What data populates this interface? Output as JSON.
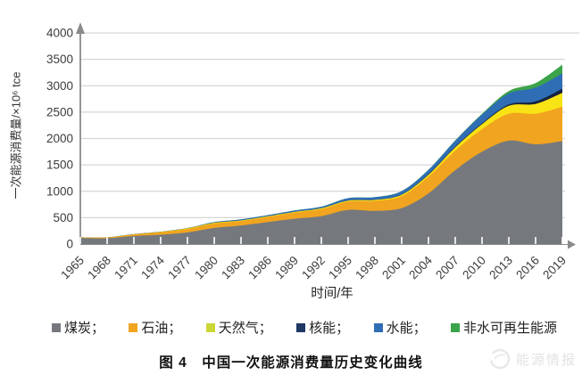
{
  "figure": {
    "caption": "图 4　中国一次能源消费量历史变化曲线",
    "watermark": "能源情报"
  },
  "chart_data": {
    "type": "area",
    "stacked": true,
    "xlabel": "时间/年",
    "ylabel": "一次能源消费量/×10⁶ tce",
    "grid": true,
    "legend_position": "bottom",
    "ylim": [
      0,
      4000
    ],
    "yticks": [
      0,
      500,
      1000,
      1500,
      2000,
      2500,
      3000,
      3500,
      4000
    ],
    "x": [
      1965,
      1968,
      1971,
      1974,
      1977,
      1980,
      1983,
      1986,
      1989,
      1992,
      1995,
      1998,
      2001,
      2004,
      2007,
      2010,
      2013,
      2016,
      2019
    ],
    "series": [
      {
        "id": "coal",
        "name": "煤炭",
        "label": "煤炭；",
        "color": "#75797E",
        "values": [
          114,
          110,
          154,
          177,
          221,
          305,
          352,
          415,
          480,
          529,
          647,
          629,
          682,
          960,
          1400,
          1749,
          1960,
          1890,
          1951
        ]
      },
      {
        "id": "oil",
        "name": "石油",
        "label": "石油；",
        "color": "#F1A41F",
        "values": [
          11,
          15,
          28,
          48,
          66,
          85,
          85,
          100,
          116,
          135,
          160,
          190,
          228,
          318,
          370,
          428,
          510,
          580,
          650
        ]
      },
      {
        "id": "gas",
        "name": "天然气",
        "label": "天然气；",
        "color": "#F8E315",
        "legend_color": "#CBD637",
        "values": [
          1,
          1,
          3,
          6,
          11,
          13,
          11,
          12,
          13,
          14,
          16,
          18,
          25,
          36,
          63,
          95,
          150,
          185,
          265
        ]
      },
      {
        "id": "nuclear",
        "name": "核能",
        "label": "核能；",
        "color": "#16233E",
        "legend_color": "#1F3864",
        "values": [
          0,
          0,
          0,
          0,
          0,
          0,
          0,
          0,
          0,
          0,
          3,
          3,
          4,
          11,
          14,
          17,
          25,
          48,
          78
        ]
      },
      {
        "id": "hydro",
        "name": "水能",
        "label": "水能；",
        "color": "#2F6EB5",
        "values": [
          2,
          3,
          3,
          4,
          5,
          13,
          20,
          21,
          27,
          30,
          43,
          47,
          63,
          80,
          110,
          165,
          210,
          263,
          290
        ]
      },
      {
        "id": "renewables",
        "name": "非水可再生能源",
        "label": "非水可再生能源",
        "color": "#3BA349",
        "values": [
          0,
          0,
          0,
          0,
          0,
          0,
          0,
          0,
          0,
          1,
          1,
          2,
          3,
          5,
          8,
          15,
          45,
          85,
          165
        ]
      }
    ]
  }
}
